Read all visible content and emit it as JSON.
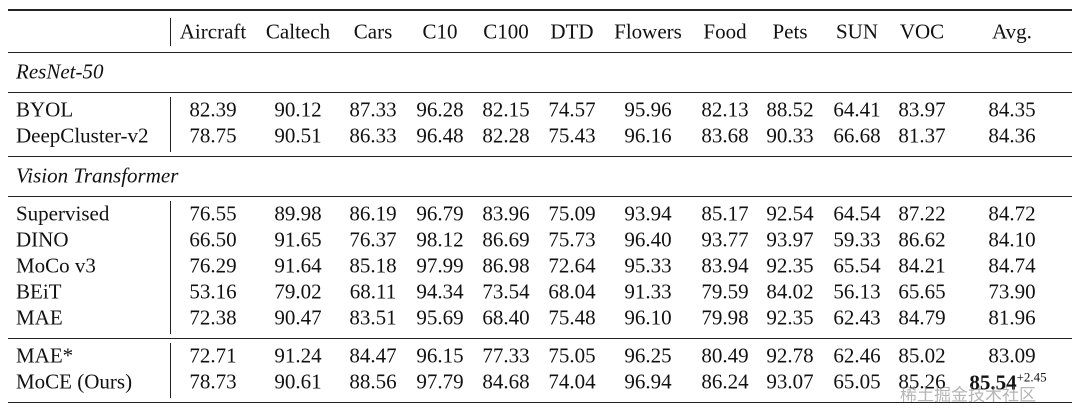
{
  "table": {
    "columns": [
      "Aircraft",
      "Caltech",
      "Cars",
      "C10",
      "C100",
      "DTD",
      "Flowers",
      "Food",
      "Pets",
      "SUN",
      "VOC",
      "Avg."
    ],
    "sections": [
      {
        "title": "ResNet-50",
        "rows": [
          {
            "name": "BYOL",
            "values": [
              "82.39",
              "90.12",
              "87.33",
              "96.28",
              "82.15",
              "74.57",
              "95.96",
              "82.13",
              "88.52",
              "64.41",
              "83.97",
              "84.35"
            ]
          },
          {
            "name": "DeepCluster-v2",
            "values": [
              "78.75",
              "90.51",
              "86.33",
              "96.48",
              "82.28",
              "75.43",
              "96.16",
              "83.68",
              "90.33",
              "66.68",
              "81.37",
              "84.36"
            ]
          }
        ]
      },
      {
        "title": "Vision Transformer",
        "rows": [
          {
            "name": "Supervised",
            "values": [
              "76.55",
              "89.98",
              "86.19",
              "96.79",
              "83.96",
              "75.09",
              "93.94",
              "85.17",
              "92.54",
              "64.54",
              "87.22",
              "84.72"
            ]
          },
          {
            "name": "DINO",
            "values": [
              "66.50",
              "91.65",
              "76.37",
              "98.12",
              "86.69",
              "75.73",
              "96.40",
              "93.77",
              "93.97",
              "59.33",
              "86.62",
              "84.10"
            ]
          },
          {
            "name": "MoCo v3",
            "values": [
              "76.29",
              "91.64",
              "85.18",
              "97.99",
              "86.98",
              "72.64",
              "95.33",
              "83.94",
              "92.35",
              "65.54",
              "84.21",
              "84.74"
            ]
          },
          {
            "name": "BEiT",
            "values": [
              "53.16",
              "79.02",
              "68.11",
              "94.34",
              "73.54",
              "68.04",
              "91.33",
              "79.59",
              "84.02",
              "56.13",
              "65.65",
              "73.90"
            ]
          },
          {
            "name": "MAE",
            "values": [
              "72.38",
              "90.47",
              "83.51",
              "95.69",
              "68.40",
              "75.48",
              "96.10",
              "79.98",
              "92.35",
              "62.43",
              "84.79",
              "81.96"
            ]
          }
        ]
      },
      {
        "rows": [
          {
            "name": "MAE*",
            "values": [
              "72.71",
              "91.24",
              "84.47",
              "96.15",
              "77.33",
              "75.05",
              "96.25",
              "80.49",
              "92.78",
              "62.46",
              "85.02",
              "83.09"
            ]
          },
          {
            "name": "MoCE (Ours)",
            "values": [
              "78.73",
              "90.61",
              "88.56",
              "97.79",
              "84.68",
              "74.04",
              "96.94",
              "86.24",
              "93.07",
              "65.05",
              "85.26",
              "85.54"
            ],
            "avg_gain": "+2.45"
          }
        ]
      }
    ],
    "watermark": "稀土掘金技术社区"
  }
}
